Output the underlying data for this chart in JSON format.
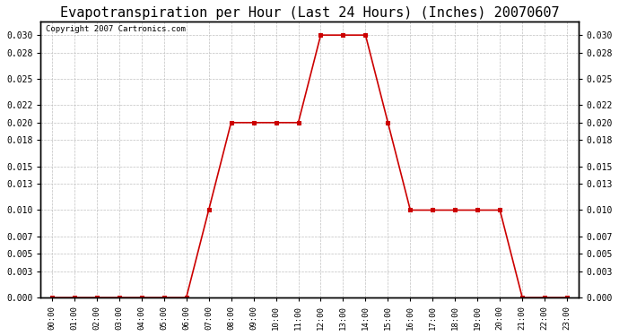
{
  "title": "Evapotranspiration per Hour (Last 24 Hours) (Inches) 20070607",
  "copyright_text": "Copyright 2007 Cartronics.com",
  "hours": [
    "00:00",
    "01:00",
    "02:00",
    "03:00",
    "04:00",
    "05:00",
    "06:00",
    "07:00",
    "08:00",
    "09:00",
    "10:00",
    "11:00",
    "12:00",
    "13:00",
    "14:00",
    "15:00",
    "16:00",
    "17:00",
    "18:00",
    "19:00",
    "20:00",
    "21:00",
    "22:00",
    "23:00"
  ],
  "values": [
    0.0,
    0.0,
    0.0,
    0.0,
    0.0,
    0.0,
    0.0,
    0.01,
    0.02,
    0.02,
    0.02,
    0.02,
    0.03,
    0.03,
    0.03,
    0.02,
    0.01,
    0.01,
    0.01,
    0.01,
    0.01,
    0.0,
    0.0,
    0.0
  ],
  "line_color": "#cc0000",
  "marker": "s",
  "marker_size": 3,
  "marker_facecolor": "#cc0000",
  "ylim": [
    0.0,
    0.0315
  ],
  "yticks": [
    0.0,
    0.003,
    0.005,
    0.007,
    0.01,
    0.013,
    0.015,
    0.018,
    0.02,
    0.022,
    0.025,
    0.028,
    0.03
  ],
  "grid_color": "#c0c0c0",
  "bg_color": "#ffffff",
  "title_fontsize": 11,
  "copyright_fontsize": 6.5
}
